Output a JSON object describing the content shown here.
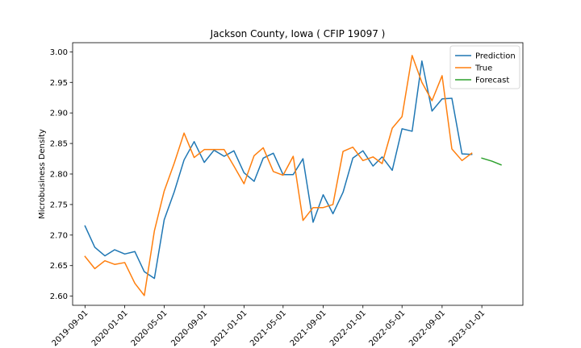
{
  "chart_data": {
    "type": "line",
    "title": "Jackson County, Iowa ( CFIP 19097 )",
    "xlabel": "",
    "ylabel": "Microbusiness Density",
    "ylim": [
      2.585,
      3.015
    ],
    "xlim": [
      "2019-07-25",
      "2023-05-07"
    ],
    "y_ticks": [
      2.6,
      2.65,
      2.7,
      2.75,
      2.8,
      2.85,
      2.9,
      2.95,
      3.0
    ],
    "y_tick_labels": [
      "2.60",
      "2.65",
      "2.70",
      "2.75",
      "2.80",
      "2.85",
      "2.90",
      "2.95",
      "3.00"
    ],
    "x_ticks": [
      "2019-09-01",
      "2020-01-01",
      "2020-05-01",
      "2020-09-01",
      "2021-01-01",
      "2021-05-01",
      "2021-09-01",
      "2022-01-01",
      "2022-05-01",
      "2022-09-01",
      "2023-01-01"
    ],
    "legend_position": "upper-right",
    "grid": false,
    "series": [
      {
        "name": "Prediction",
        "color": "#1f77b4",
        "x": [
          "2019-09-01",
          "2019-10-01",
          "2019-11-01",
          "2019-12-01",
          "2020-01-01",
          "2020-02-01",
          "2020-03-01",
          "2020-04-01",
          "2020-05-01",
          "2020-06-01",
          "2020-07-01",
          "2020-08-01",
          "2020-09-01",
          "2020-10-01",
          "2020-11-01",
          "2020-12-01",
          "2021-01-01",
          "2021-02-01",
          "2021-03-01",
          "2021-04-01",
          "2021-05-01",
          "2021-06-01",
          "2021-07-01",
          "2021-08-01",
          "2021-09-01",
          "2021-10-01",
          "2021-11-01",
          "2021-12-01",
          "2022-01-01",
          "2022-02-01",
          "2022-03-01",
          "2022-04-01",
          "2022-05-01",
          "2022-06-01",
          "2022-07-01",
          "2022-08-01",
          "2022-09-01",
          "2022-10-01",
          "2022-11-01",
          "2022-12-01"
        ],
        "values": [
          2.715,
          2.68,
          2.666,
          2.676,
          2.669,
          2.673,
          2.64,
          2.629,
          2.725,
          2.771,
          2.823,
          2.853,
          2.819,
          2.839,
          2.829,
          2.838,
          2.802,
          2.788,
          2.826,
          2.834,
          2.799,
          2.799,
          2.825,
          2.721,
          2.766,
          2.735,
          2.77,
          2.826,
          2.838,
          2.813,
          2.828,
          2.806,
          2.874,
          2.87,
          2.985,
          2.903,
          2.923,
          2.924,
          2.833,
          2.832
        ]
      },
      {
        "name": "True",
        "color": "#ff7f0e",
        "x": [
          "2019-09-01",
          "2019-10-01",
          "2019-11-01",
          "2019-12-01",
          "2020-01-01",
          "2020-02-01",
          "2020-03-01",
          "2020-04-01",
          "2020-05-01",
          "2020-06-01",
          "2020-07-01",
          "2020-08-01",
          "2020-09-01",
          "2020-10-01",
          "2020-11-01",
          "2020-12-01",
          "2021-01-01",
          "2021-02-01",
          "2021-03-01",
          "2021-04-01",
          "2021-05-01",
          "2021-06-01",
          "2021-07-01",
          "2021-08-01",
          "2021-09-01",
          "2021-10-01",
          "2021-11-01",
          "2021-12-01",
          "2022-01-01",
          "2022-02-01",
          "2022-03-01",
          "2022-04-01",
          "2022-05-01",
          "2022-06-01",
          "2022-07-01",
          "2022-08-01",
          "2022-09-01",
          "2022-10-01",
          "2022-11-01",
          "2022-12-01"
        ],
        "values": [
          2.665,
          2.645,
          2.658,
          2.652,
          2.655,
          2.621,
          2.601,
          2.707,
          2.772,
          2.818,
          2.867,
          2.827,
          2.84,
          2.84,
          2.84,
          2.813,
          2.784,
          2.83,
          2.843,
          2.804,
          2.798,
          2.829,
          2.724,
          2.745,
          2.745,
          2.75,
          2.837,
          2.844,
          2.822,
          2.828,
          2.817,
          2.875,
          2.894,
          2.994,
          2.95,
          2.92,
          2.961,
          2.841,
          2.822,
          2.834
        ]
      },
      {
        "name": "Forecast",
        "color": "#2ca02c",
        "x": [
          "2023-01-01",
          "2023-02-01",
          "2023-03-01"
        ],
        "values": [
          2.826,
          2.821,
          2.815
        ]
      }
    ]
  }
}
